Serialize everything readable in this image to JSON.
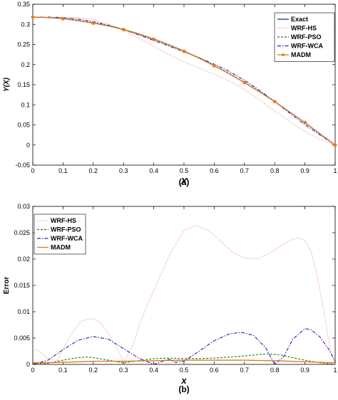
{
  "chart_data": [
    {
      "panel_label": "(a)",
      "type": "line",
      "xlabel": "X",
      "ylabel": "Y(X)",
      "xlim": [
        0,
        1
      ],
      "ylim": [
        -0.05,
        0.35
      ],
      "xticks": [
        "0",
        "0.1",
        "0.2",
        "0.3",
        "0.4",
        "0.5",
        "0.6",
        "0.7",
        "0.8",
        "0.9",
        "1"
      ],
      "yticks": [
        "-0.05",
        "0",
        "0.05",
        "0.1",
        "0.15",
        "0.2",
        "0.25",
        "0.3",
        "0.35"
      ],
      "grid": false,
      "legend_position": "top-right",
      "series": [
        {
          "name": "Exact",
          "color": "#1f2a8c",
          "style": "solid",
          "x": [
            0,
            0.05,
            0.1,
            0.15,
            0.2,
            0.25,
            0.3,
            0.35,
            0.4,
            0.45,
            0.5,
            0.55,
            0.6,
            0.65,
            0.7,
            0.75,
            0.8,
            0.85,
            0.9,
            0.95,
            1.0
          ],
          "y": [
            0.318,
            0.317,
            0.314,
            0.309,
            0.303,
            0.296,
            0.287,
            0.276,
            0.263,
            0.249,
            0.233,
            0.216,
            0.197,
            0.177,
            0.155,
            0.132,
            0.108,
            0.082,
            0.056,
            0.028,
            0.0
          ]
        },
        {
          "name": "WRF-HS",
          "color": "#f0a0a0",
          "style": "dotted",
          "x": [
            0,
            0.05,
            0.1,
            0.15,
            0.2,
            0.25,
            0.3,
            0.35,
            0.4,
            0.45,
            0.5,
            0.55,
            0.6,
            0.65,
            0.7,
            0.75,
            0.8,
            0.85,
            0.9,
            0.95,
            1.0
          ],
          "y": [
            0.318,
            0.316,
            0.317,
            0.317,
            0.312,
            0.301,
            0.285,
            0.266,
            0.245,
            0.225,
            0.207,
            0.191,
            0.176,
            0.159,
            0.138,
            0.112,
            0.085,
            0.058,
            0.034,
            0.014,
            0.0
          ]
        },
        {
          "name": "WRF-PSO",
          "color": "#1a7a1a",
          "style": "dashed",
          "x": [
            0,
            0.05,
            0.1,
            0.15,
            0.2,
            0.25,
            0.3,
            0.35,
            0.4,
            0.45,
            0.5,
            0.55,
            0.6,
            0.65,
            0.7,
            0.75,
            0.8,
            0.85,
            0.9,
            0.95,
            1.0
          ],
          "y": [
            0.318,
            0.317,
            0.315,
            0.31,
            0.304,
            0.297,
            0.288,
            0.277,
            0.264,
            0.25,
            0.234,
            0.217,
            0.198,
            0.178,
            0.156,
            0.133,
            0.108,
            0.082,
            0.056,
            0.028,
            0.0
          ]
        },
        {
          "name": "WRF-WCA",
          "color": "#3a1aa8",
          "style": "dashdot",
          "x": [
            0,
            0.05,
            0.1,
            0.15,
            0.2,
            0.25,
            0.3,
            0.35,
            0.4,
            0.45,
            0.5,
            0.55,
            0.6,
            0.65,
            0.7,
            0.75,
            0.8,
            0.85,
            0.9,
            0.95,
            1.0
          ],
          "y": [
            0.318,
            0.318,
            0.317,
            0.313,
            0.307,
            0.298,
            0.287,
            0.274,
            0.26,
            0.246,
            0.232,
            0.217,
            0.201,
            0.183,
            0.161,
            0.136,
            0.108,
            0.079,
            0.051,
            0.025,
            0.0
          ]
        },
        {
          "name": "MADM",
          "color": "#e07a1a",
          "style": "solid-markers",
          "x": [
            0,
            0.05,
            0.1,
            0.15,
            0.2,
            0.25,
            0.3,
            0.35,
            0.4,
            0.45,
            0.5,
            0.55,
            0.6,
            0.65,
            0.7,
            0.75,
            0.8,
            0.85,
            0.9,
            0.95,
            1.0
          ],
          "y": [
            0.318,
            0.317,
            0.314,
            0.309,
            0.303,
            0.296,
            0.287,
            0.276,
            0.263,
            0.249,
            0.233,
            0.216,
            0.197,
            0.177,
            0.155,
            0.132,
            0.108,
            0.082,
            0.056,
            0.028,
            0.0
          ]
        }
      ]
    },
    {
      "panel_label": "(b)",
      "type": "line",
      "xlabel": "x",
      "ylabel": "Error",
      "xlim": [
        0,
        1
      ],
      "ylim": [
        0,
        0.03
      ],
      "xticks": [
        "0",
        "0.1",
        "0.2",
        "0.3",
        "0.4",
        "0.5",
        "0.6",
        "0.7",
        "0.8",
        "0.9",
        "1"
      ],
      "yticks": [
        "0",
        "0.005",
        "0.01",
        "0.015",
        "0.02",
        "0.025",
        "0.03"
      ],
      "grid": false,
      "legend_position": "top-left",
      "series": [
        {
          "name": "WRF-HS",
          "color": "#f0a0a0",
          "style": "dotted",
          "x": [
            0,
            0.02,
            0.05,
            0.08,
            0.1,
            0.13,
            0.16,
            0.19,
            0.22,
            0.25,
            0.28,
            0.3,
            0.33,
            0.36,
            0.4,
            0.45,
            0.5,
            0.54,
            0.58,
            0.62,
            0.66,
            0.7,
            0.74,
            0.78,
            0.82,
            0.86,
            0.88,
            0.9,
            0.92,
            0.94,
            0.96,
            0.98,
            1.0
          ],
          "y": [
            0.003,
            0.0025,
            0.0012,
            0.0007,
            0.003,
            0.006,
            0.0082,
            0.0087,
            0.0082,
            0.006,
            0.0028,
            0.0005,
            0.0035,
            0.0088,
            0.014,
            0.0205,
            0.0255,
            0.0264,
            0.0255,
            0.0235,
            0.0213,
            0.0202,
            0.02,
            0.021,
            0.0225,
            0.0238,
            0.024,
            0.0235,
            0.0215,
            0.017,
            0.011,
            0.004,
            0.0
          ]
        },
        {
          "name": "WRF-PSO",
          "color": "#1a7a1a",
          "style": "dashed",
          "x": [
            0,
            0.05,
            0.1,
            0.15,
            0.18,
            0.2,
            0.25,
            0.3,
            0.35,
            0.4,
            0.45,
            0.5,
            0.55,
            0.6,
            0.65,
            0.7,
            0.75,
            0.78,
            0.82,
            0.85,
            0.9,
            0.95,
            1.0
          ],
          "y": [
            0.0002,
            0.0002,
            0.0008,
            0.0013,
            0.0014,
            0.0013,
            0.0008,
            0.0003,
            0.0007,
            0.0011,
            0.0012,
            0.0011,
            0.0011,
            0.0012,
            0.0014,
            0.0016,
            0.0019,
            0.002,
            0.0018,
            0.0014,
            0.0008,
            0.0003,
            0.0
          ]
        },
        {
          "name": "WRF-WCA",
          "color": "#3a1aa8",
          "style": "dashdot",
          "x": [
            0,
            0.05,
            0.1,
            0.15,
            0.2,
            0.25,
            0.3,
            0.35,
            0.4,
            0.45,
            0.47,
            0.5,
            0.55,
            0.6,
            0.65,
            0.69,
            0.73,
            0.77,
            0.8,
            0.83,
            0.86,
            0.9,
            0.92,
            0.95,
            0.98,
            1.0
          ],
          "y": [
            0.0,
            0.0008,
            0.0028,
            0.0046,
            0.0053,
            0.0048,
            0.003,
            0.0012,
            0.0,
            0.001,
            0.0004,
            0.0006,
            0.0025,
            0.0045,
            0.0058,
            0.0061,
            0.0055,
            0.0032,
            0.0,
            0.0015,
            0.0048,
            0.0068,
            0.0066,
            0.0052,
            0.0028,
            0.0005
          ]
        },
        {
          "name": "MADM",
          "color": "#e07a1a",
          "style": "solid",
          "x": [
            0,
            0.1,
            0.2,
            0.3,
            0.4,
            0.5,
            0.6,
            0.7,
            0.8,
            0.9,
            1.0
          ],
          "y": [
            0.0003,
            0.0004,
            0.0006,
            0.0006,
            0.0007,
            0.0008,
            0.0008,
            0.0008,
            0.0007,
            0.0005,
            0.0003
          ]
        }
      ]
    }
  ]
}
